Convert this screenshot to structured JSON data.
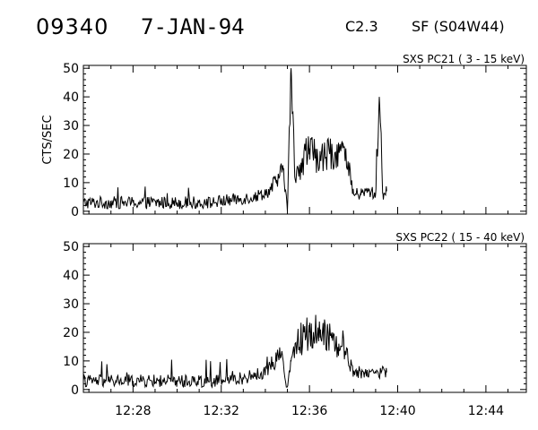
{
  "header": {
    "event_id": "09340",
    "date": "7-JAN-94",
    "flare_class": "C2.3",
    "location": "SF (S04W44)"
  },
  "chart_data": [
    {
      "type": "line",
      "title": "SXS PC21  (  3 - 15 keV)",
      "xlabel": "",
      "ylabel": "CTS/SEC",
      "xlim": [
        "12:25:45",
        "12:45:50"
      ],
      "ylim": [
        -1,
        51
      ],
      "yticks": [
        0,
        10,
        20,
        30,
        40,
        50
      ],
      "xticks": [
        "12:28",
        "12:32",
        "12:36",
        "12:40",
        "12:44"
      ],
      "xtick_labels_shown": false,
      "grid": false,
      "series": [
        {
          "x": [
            "12:25:45",
            "12:28:00",
            "12:30:00",
            "12:31:30",
            "12:32:30",
            "12:33:30",
            "12:34:10",
            "12:34:30",
            "12:34:50",
            "12:35:00",
            "12:35:10",
            "12:35:20",
            "12:35:40",
            "12:36:00",
            "12:36:30",
            "12:37:00",
            "12:37:30",
            "12:38:00",
            "12:38:20",
            "12:38:40",
            "12:39:00",
            "12:39:10",
            "12:39:20",
            "12:39:30"
          ],
          "values": [
            3,
            3,
            3,
            3,
            4,
            5,
            7,
            10,
            15,
            0,
            50,
            12,
            18,
            22,
            18,
            20,
            22,
            6,
            6,
            7,
            6,
            40,
            6,
            7
          ]
        }
      ]
    },
    {
      "type": "line",
      "title": "SXS PC22  ( 15 - 40 keV)",
      "xlabel": "",
      "ylabel": "",
      "xlim": [
        "12:25:45",
        "12:45:50"
      ],
      "ylim": [
        -1,
        51
      ],
      "yticks": [
        0,
        10,
        20,
        30,
        40,
        50
      ],
      "xticks": [
        "12:28",
        "12:32",
        "12:36",
        "12:40",
        "12:44"
      ],
      "xtick_labels_shown": true,
      "grid": false,
      "series": [
        {
          "x": [
            "12:25:45",
            "12:28:00",
            "12:30:00",
            "12:32:00",
            "12:33:00",
            "12:34:00",
            "12:34:40",
            "12:35:00",
            "12:35:10",
            "12:35:30",
            "12:36:00",
            "12:36:30",
            "12:37:00",
            "12:37:20",
            "12:37:40",
            "12:38:00",
            "12:38:30",
            "12:39:00",
            "12:39:30"
          ],
          "values": [
            3,
            3,
            3,
            3,
            4,
            6,
            13,
            1,
            10,
            17,
            20,
            21,
            18,
            16,
            13,
            6,
            6,
            6,
            6
          ]
        }
      ]
    }
  ]
}
